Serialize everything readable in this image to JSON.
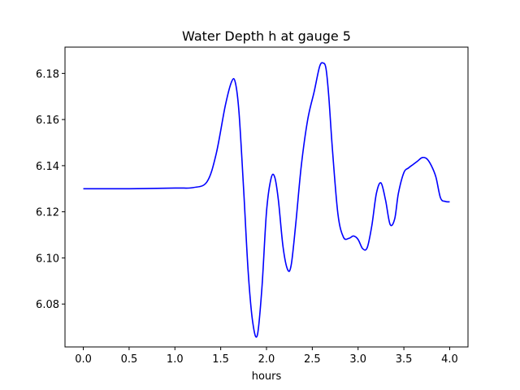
{
  "chart_data": {
    "type": "line",
    "title": "Water Depth h at gauge 5",
    "xlabel": "hours",
    "ylabel": "",
    "xlim": [
      -0.2,
      4.2
    ],
    "ylim": [
      6.0614,
      6.1914
    ],
    "xticks": [
      0.0,
      0.5,
      1.0,
      1.5,
      2.0,
      2.5,
      3.0,
      3.5,
      4.0
    ],
    "xtick_labels": [
      "0.0",
      "0.5",
      "1.0",
      "1.5",
      "2.0",
      "2.5",
      "3.0",
      "3.5",
      "4.0"
    ],
    "yticks": [
      6.08,
      6.1,
      6.12,
      6.14,
      6.16,
      6.18
    ],
    "ytick_labels": [
      "6.08",
      "6.10",
      "6.12",
      "6.14",
      "6.16",
      "6.18"
    ],
    "grid": false,
    "series": [
      {
        "color": "#0000ff",
        "x": [
          0.0,
          0.5,
          1.0,
          1.2,
          1.35,
          1.45,
          1.55,
          1.62,
          1.66,
          1.7,
          1.75,
          1.8,
          1.85,
          1.9,
          1.95,
          2.0,
          2.05,
          2.09,
          2.13,
          2.18,
          2.23,
          2.27,
          2.32,
          2.38,
          2.45,
          2.52,
          2.58,
          2.62,
          2.65,
          2.68,
          2.72,
          2.78,
          2.84,
          2.9,
          2.95,
          3.0,
          3.05,
          3.1,
          3.15,
          3.2,
          3.25,
          3.3,
          3.35,
          3.4,
          3.44,
          3.5,
          3.55,
          3.6,
          3.65,
          3.7,
          3.75,
          3.8,
          3.85,
          3.9,
          3.95,
          4.0
        ],
        "y": [
          6.13,
          6.13,
          6.1303,
          6.1305,
          6.133,
          6.145,
          6.166,
          6.1765,
          6.176,
          6.163,
          6.13,
          6.094,
          6.072,
          6.0665,
          6.087,
          6.12,
          6.1345,
          6.135,
          6.125,
          6.105,
          6.095,
          6.097,
          6.115,
          6.14,
          6.16,
          6.172,
          6.183,
          6.1845,
          6.182,
          6.17,
          6.147,
          6.119,
          6.109,
          6.1085,
          6.1095,
          6.108,
          6.104,
          6.1045,
          6.114,
          6.128,
          6.1325,
          6.125,
          6.1145,
          6.117,
          6.128,
          6.137,
          6.139,
          6.1405,
          6.142,
          6.1435,
          6.143,
          6.14,
          6.135,
          6.126,
          6.1245,
          6.1243
        ]
      }
    ]
  }
}
